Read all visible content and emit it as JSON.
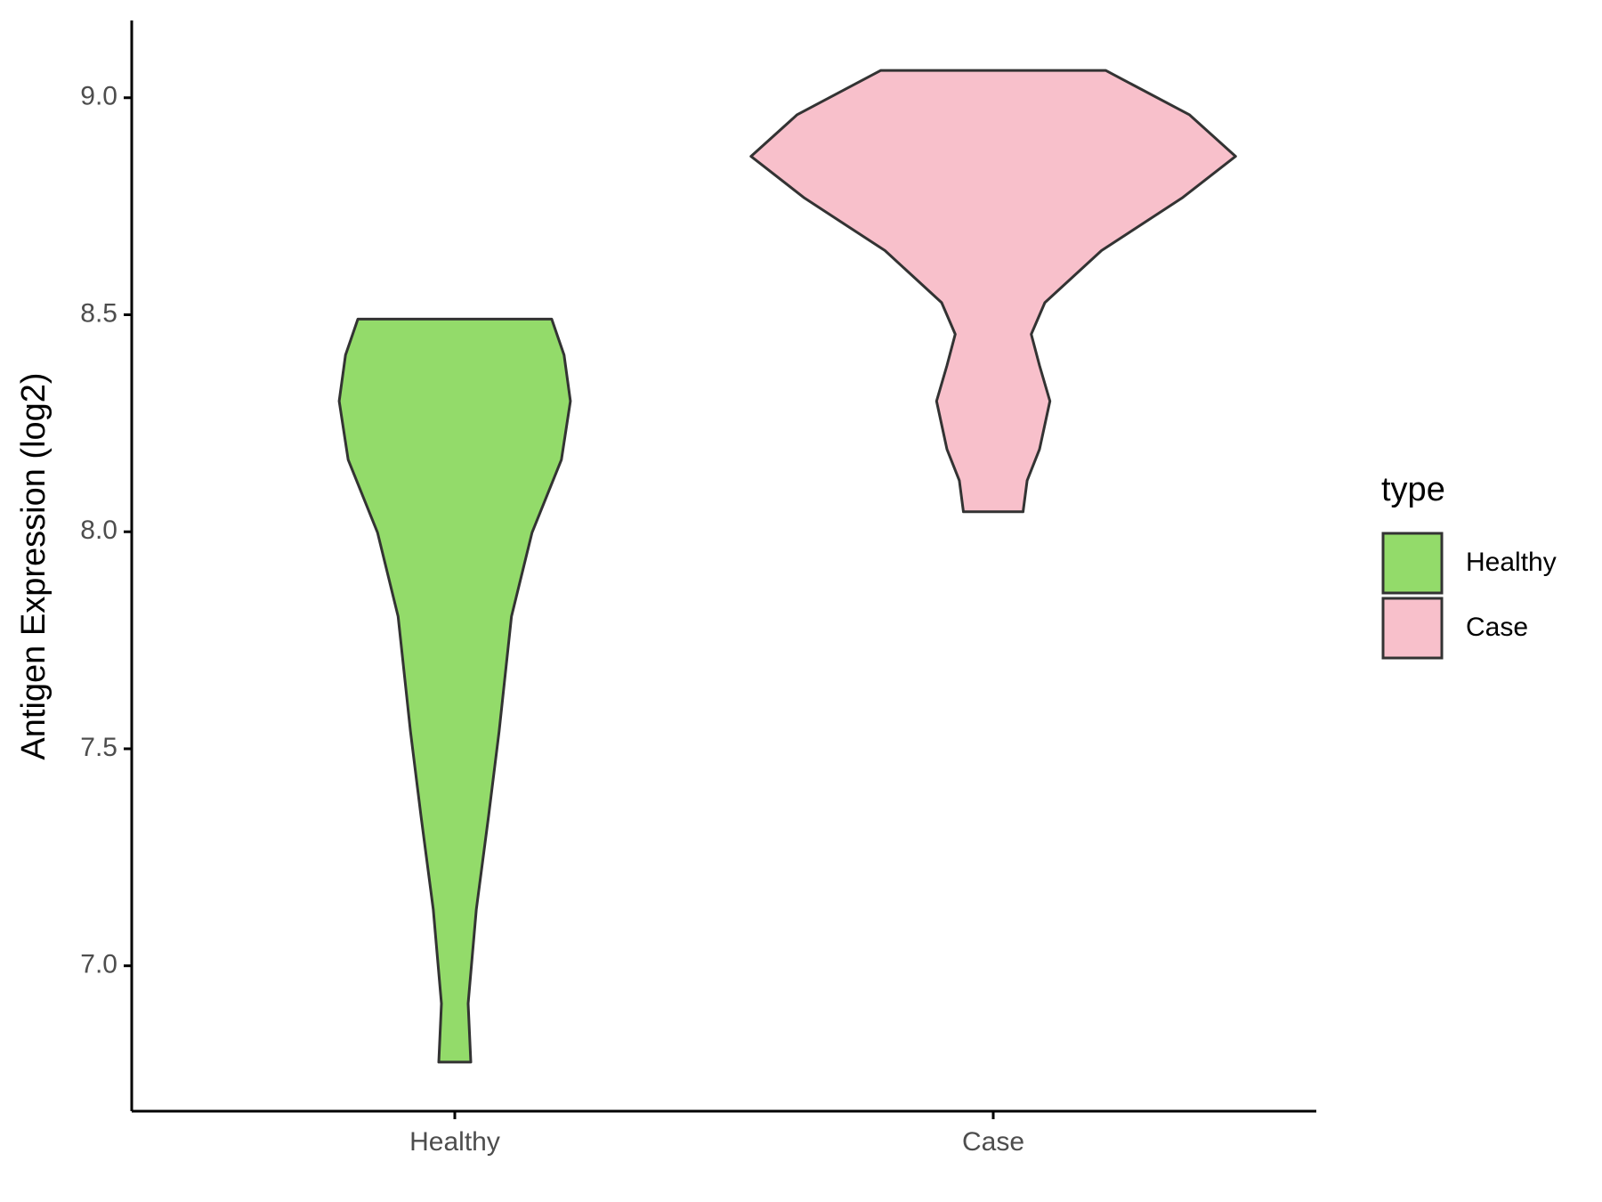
{
  "chart_data": {
    "type": "violin",
    "y_label": "Antigen Expression (log2)",
    "ylim": [
      6.665,
      9.178
    ],
    "yticks": [
      {
        "value": 7.0,
        "label": "7.0"
      },
      {
        "value": 7.5,
        "label": "7.5"
      },
      {
        "value": 8.0,
        "label": "8.0"
      },
      {
        "value": 8.5,
        "label": "8.5"
      },
      {
        "value": 9.0,
        "label": "9.0"
      }
    ],
    "categories": [
      "Healthy",
      "Case"
    ],
    "legend_title": "type",
    "series": [
      {
        "name": "Healthy",
        "color": "#93DB6A",
        "y": [
          6.778,
          6.913,
          7.13,
          7.347,
          7.54,
          7.805,
          7.998,
          8.166,
          8.301,
          8.407,
          8.49
        ],
        "density": [
          0.066,
          0.055,
          0.089,
          0.14,
          0.183,
          0.234,
          0.319,
          0.44,
          0.477,
          0.451,
          0.4
        ]
      },
      {
        "name": "Case",
        "color": "#F8C0CB",
        "y": [
          8.046,
          8.118,
          8.19,
          8.301,
          8.383,
          8.455,
          8.528,
          8.648,
          8.769,
          8.865,
          8.961,
          9.063
        ],
        "density": [
          0.123,
          0.14,
          0.191,
          0.234,
          0.191,
          0.157,
          0.213,
          0.447,
          0.779,
          1.0,
          0.809,
          0.464
        ]
      }
    ]
  }
}
